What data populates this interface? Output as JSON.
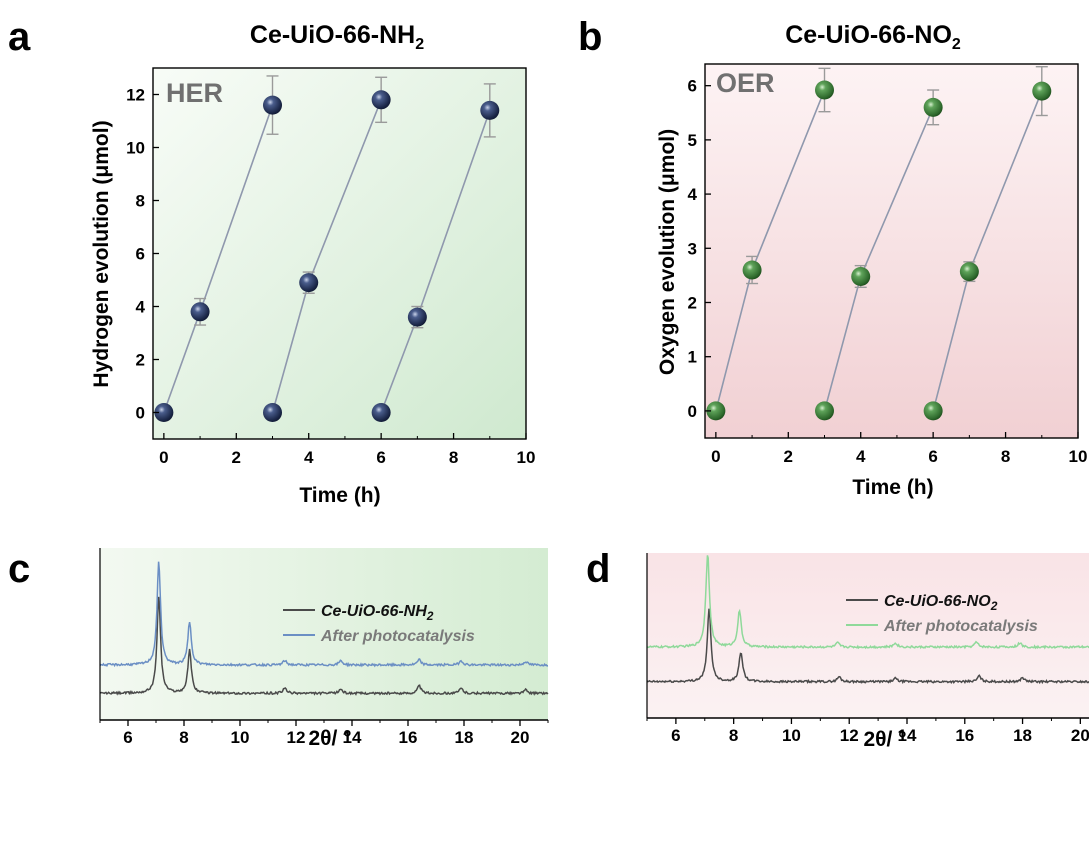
{
  "panels": {
    "a": {
      "letter": "a",
      "title_main": "Ce-UiO-66-NH",
      "title_sub": "2"
    },
    "b": {
      "letter": "b",
      "title_main": "Ce-UiO-66-NO",
      "title_sub": "2"
    },
    "c": {
      "letter": "c"
    },
    "d": {
      "letter": "d"
    }
  },
  "colors": {
    "her_bg_light": "#f7fbf6",
    "her_bg_dark": "#d3ecd3",
    "oer_bg_light": "#fcf1f2",
    "oer_bg_dark": "#f1cfd2",
    "her_marker": "#233256",
    "oer_marker": "#3f7f3c",
    "connector": "#8f98ad",
    "errorbar": "#9a9a9a",
    "xrd_black": "#4a4a4a",
    "xrd_blue": "#6b8fc4",
    "xrd_green": "#8fd99a",
    "badge_text": "#707070"
  },
  "chart_data": [
    {
      "id": "a",
      "type": "scatter",
      "title": "Ce-UiO-66-NH2",
      "badge": "HER",
      "xlabel": "Time (h)",
      "ylabel": "Hydrogen evolution (μmol)",
      "xlim": [
        -0.3,
        10
      ],
      "ylim": [
        -1,
        13
      ],
      "xticks": [
        0,
        2,
        4,
        6,
        8,
        10
      ],
      "yticks": [
        0,
        2,
        4,
        6,
        8,
        10,
        12
      ],
      "grid": false,
      "segments": [
        {
          "x": [
            0,
            1,
            3
          ],
          "y": [
            0,
            3.8,
            11.6
          ],
          "err": [
            0,
            0.5,
            1.1
          ]
        },
        {
          "x": [
            3,
            4,
            6
          ],
          "y": [
            0,
            4.9,
            11.8
          ],
          "err": [
            0,
            0.4,
            0.85
          ]
        },
        {
          "x": [
            6,
            7,
            9
          ],
          "y": [
            0,
            3.6,
            11.4
          ],
          "err": [
            0,
            0.4,
            1.0
          ]
        }
      ]
    },
    {
      "id": "b",
      "type": "scatter",
      "title": "Ce-UiO-66-NO2",
      "badge": "OER",
      "xlabel": "Time (h)",
      "ylabel": "Oxygen evolution (μmol)",
      "xlim": [
        -0.3,
        10
      ],
      "ylim": [
        -0.5,
        6.4
      ],
      "xticks": [
        0,
        2,
        4,
        6,
        8,
        10
      ],
      "yticks": [
        0,
        1,
        2,
        3,
        4,
        5,
        6
      ],
      "grid": false,
      "segments": [
        {
          "x": [
            0,
            1,
            3
          ],
          "y": [
            0,
            2.6,
            5.92
          ],
          "err": [
            0,
            0.25,
            0.4
          ]
        },
        {
          "x": [
            3,
            4,
            6
          ],
          "y": [
            0,
            2.48,
            5.6
          ],
          "err": [
            0,
            0.2,
            0.32
          ]
        },
        {
          "x": [
            6,
            7,
            9
          ],
          "y": [
            0,
            2.57,
            5.9
          ],
          "err": [
            0,
            0.18,
            0.45
          ]
        }
      ]
    },
    {
      "id": "c",
      "type": "line",
      "xlabel": "2θ/ °",
      "ylabel": "",
      "xlim": [
        5,
        21
      ],
      "xticks": [
        6,
        8,
        10,
        12,
        14,
        16,
        18,
        20
      ],
      "legend_position": "top-right",
      "series": [
        {
          "name": "Ce-UiO-66-NH2",
          "legend_main": "Ce-UiO-66-NH",
          "legend_sub": "2",
          "baseline_frac": 0.155,
          "peaks": [
            [
              7.1,
              0.57
            ],
            [
              8.2,
              0.25
            ],
            [
              11.6,
              0.03
            ],
            [
              13.6,
              0.025
            ],
            [
              16.4,
              0.045
            ],
            [
              17.9,
              0.03
            ],
            [
              20.2,
              0.02
            ]
          ]
        },
        {
          "name": "After photocatalysis",
          "legend_main": "After photocatalysis",
          "legend_sub": "",
          "baseline_frac": 0.32,
          "peaks": [
            [
              7.1,
              0.6
            ],
            [
              8.2,
              0.25
            ],
            [
              11.6,
              0.025
            ],
            [
              13.6,
              0.025
            ],
            [
              16.4,
              0.03
            ],
            [
              17.9,
              0.025
            ],
            [
              20.2,
              0.02
            ]
          ]
        }
      ]
    },
    {
      "id": "d",
      "type": "line",
      "xlabel": "2θ/ °",
      "ylabel": "",
      "xlim": [
        5,
        20.3
      ],
      "xticks": [
        6,
        8,
        10,
        12,
        14,
        16,
        18,
        20
      ],
      "legend_position": "top-right",
      "series": [
        {
          "name": "Ce-UiO-66-NO2",
          "legend_main": "Ce-UiO-66-NO",
          "legend_sub": "2",
          "baseline_frac": 0.22,
          "peaks": [
            [
              7.15,
              0.44
            ],
            [
              8.25,
              0.18
            ],
            [
              11.65,
              0.03
            ],
            [
              13.6,
              0.02
            ],
            [
              16.5,
              0.035
            ],
            [
              18.0,
              0.025
            ]
          ]
        },
        {
          "name": "After photocatalysis",
          "legend_main": "After photocatalysis",
          "legend_sub": "",
          "baseline_frac": 0.43,
          "peaks": [
            [
              7.1,
              0.57
            ],
            [
              8.2,
              0.22
            ],
            [
              11.6,
              0.025
            ],
            [
              13.6,
              0.025
            ],
            [
              16.4,
              0.03
            ],
            [
              17.9,
              0.025
            ]
          ]
        }
      ]
    }
  ]
}
